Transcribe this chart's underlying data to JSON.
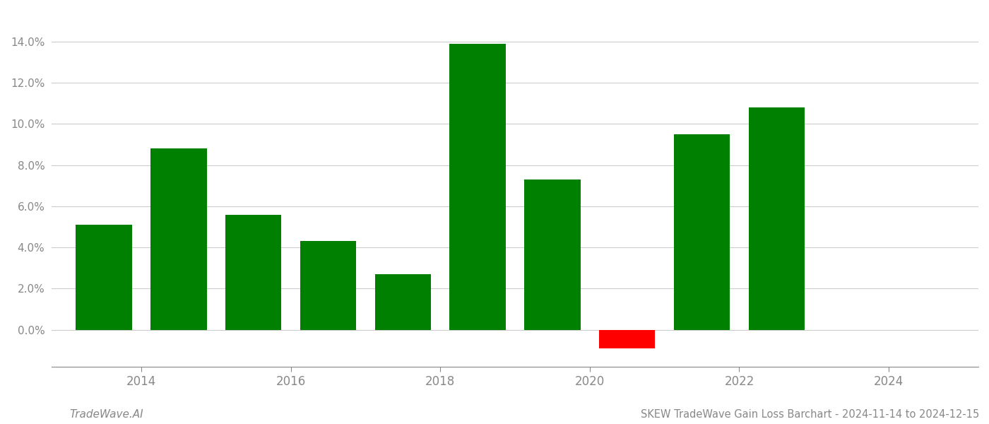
{
  "years": [
    2013.5,
    2014.5,
    2015.5,
    2016.5,
    2017.5,
    2018.5,
    2019.5,
    2020.5,
    2021.5,
    2022.5,
    2023.5
  ],
  "values": [
    0.051,
    0.088,
    0.056,
    0.043,
    0.027,
    0.139,
    0.073,
    -0.009,
    0.095,
    0.108,
    0.0
  ],
  "colors": [
    "#008000",
    "#008000",
    "#008000",
    "#008000",
    "#008000",
    "#008000",
    "#008000",
    "#ff0000",
    "#008000",
    "#008000",
    "#008000"
  ],
  "title": "SKEW TradeWave Gain Loss Barchart - 2024-11-14 to 2024-12-15",
  "watermark": "TradeWave.AI",
  "ylim": [
    -0.018,
    0.155
  ],
  "yticks": [
    0.0,
    0.02,
    0.04,
    0.06,
    0.08,
    0.1,
    0.12,
    0.14
  ],
  "xlim": [
    2012.8,
    2025.2
  ],
  "xticks": [
    2014,
    2016,
    2018,
    2020,
    2022,
    2024
  ],
  "background_color": "#ffffff",
  "grid_color": "#cccccc",
  "bar_width": 0.75,
  "title_fontsize": 10.5,
  "watermark_fontsize": 11,
  "tick_fontsize": 12,
  "ytick_fontsize": 11
}
